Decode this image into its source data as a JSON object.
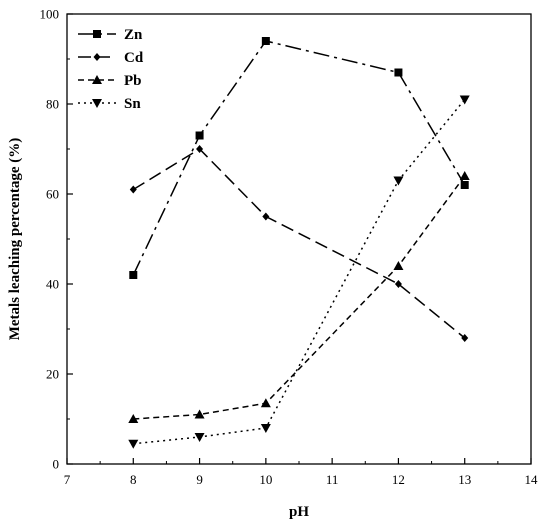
{
  "chart_data": {
    "type": "line",
    "xlabel": "pH",
    "ylabel": "Metals leaching percentage (%)",
    "xlim": [
      7,
      14
    ],
    "ylim": [
      0,
      100
    ],
    "xticks": [
      "7",
      "8",
      "9",
      "10",
      "11",
      "12",
      "13",
      "14"
    ],
    "yticks": [
      "0",
      "20",
      "40",
      "60",
      "80",
      "100"
    ],
    "grid": false,
    "legend_position": "top-left",
    "series": [
      {
        "name": "Zn",
        "marker": "square",
        "dash": "long-dash",
        "color": "#000000",
        "x": [
          8,
          9,
          10,
          12,
          13
        ],
        "y": [
          42,
          73,
          94,
          87,
          62
        ]
      },
      {
        "name": "Cd",
        "marker": "diamond",
        "dash": "dash",
        "color": "#000000",
        "x": [
          8,
          9,
          10,
          12,
          13
        ],
        "y": [
          61,
          70,
          55,
          40,
          28
        ]
      },
      {
        "name": "Pb",
        "marker": "triangle-up",
        "dash": "short-dash",
        "color": "#000000",
        "x": [
          8,
          9,
          10,
          12,
          13
        ],
        "y": [
          10,
          11,
          13.5,
          44,
          64
        ]
      },
      {
        "name": "Sn",
        "marker": "triangle-down",
        "dash": "dot",
        "color": "#000000",
        "x": [
          8,
          9,
          10,
          12,
          13
        ],
        "y": [
          4.5,
          6,
          8,
          63,
          81
        ]
      }
    ]
  }
}
